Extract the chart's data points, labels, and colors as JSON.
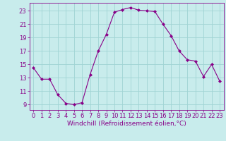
{
  "x": [
    0,
    1,
    2,
    3,
    4,
    5,
    6,
    7,
    8,
    9,
    10,
    11,
    12,
    13,
    14,
    15,
    16,
    17,
    18,
    19,
    20,
    21,
    22,
    23
  ],
  "y": [
    14.5,
    12.8,
    12.8,
    10.5,
    9.2,
    9.0,
    9.3,
    13.5,
    17.0,
    19.5,
    22.8,
    23.2,
    23.5,
    23.1,
    23.0,
    22.9,
    21.0,
    19.3,
    17.0,
    15.7,
    15.5,
    13.2,
    15.0,
    12.5
  ],
  "line_color": "#880088",
  "marker": "D",
  "marker_size": 2.0,
  "background_color": "#c8ecec",
  "grid_color": "#a0d4d4",
  "xlabel": "Windchill (Refroidissement éolien,°C)",
  "xlim": [
    -0.5,
    23.5
  ],
  "ylim": [
    8.2,
    24.2
  ],
  "yticks": [
    9,
    11,
    13,
    15,
    17,
    19,
    21,
    23
  ],
  "xticks": [
    0,
    1,
    2,
    3,
    4,
    5,
    6,
    7,
    8,
    9,
    10,
    11,
    12,
    13,
    14,
    15,
    16,
    17,
    18,
    19,
    20,
    21,
    22,
    23
  ],
  "xlabel_fontsize": 6.5,
  "tick_fontsize": 6.0,
  "tick_color": "#880088",
  "label_color": "#880088",
  "spine_color": "#880088"
}
